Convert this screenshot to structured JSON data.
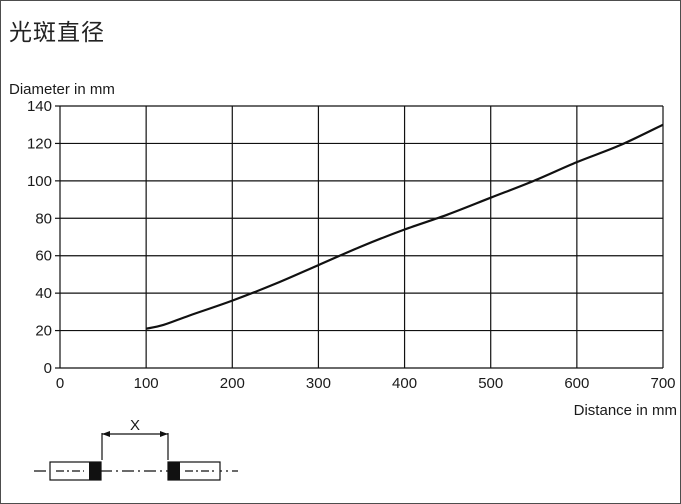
{
  "title": "光斑直径",
  "chart_data": {
    "type": "line",
    "title": "光斑直径",
    "ylabel": "Diameter in mm",
    "xlabel": "Distance in mm",
    "xlim": [
      0,
      700
    ],
    "ylim": [
      0,
      140
    ],
    "x_ticks": [
      0,
      100,
      200,
      300,
      400,
      500,
      600,
      700
    ],
    "y_ticks": [
      0,
      20,
      40,
      60,
      80,
      100,
      120,
      140
    ],
    "grid": true,
    "series": [
      {
        "x": [
          100,
          120,
          150,
          200,
          250,
          300,
          350,
          400,
          450,
          500,
          550,
          600,
          650,
          700
        ],
        "values": [
          21,
          23,
          28,
          36,
          45,
          55,
          65,
          74,
          82,
          91,
          100,
          110,
          119,
          130
        ]
      }
    ]
  },
  "diagram": {
    "x_label": "X"
  },
  "colors": {
    "line": "#111111",
    "grid": "#111111",
    "frame": "#4d4d4d"
  }
}
